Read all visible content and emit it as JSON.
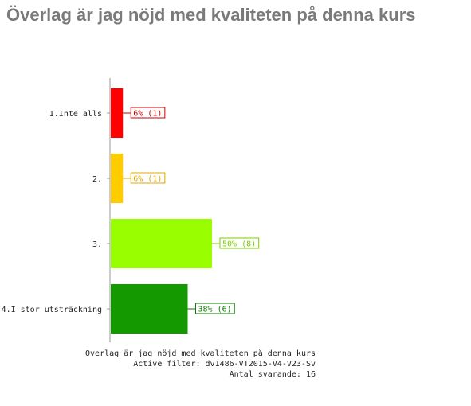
{
  "title": "Överlag är jag nöjd med kvaliteten på denna kurs",
  "chart_data": {
    "type": "bar",
    "orientation": "horizontal",
    "categories": [
      "1.Inte alls",
      "2.",
      "3.",
      "4.I stor utsträckning"
    ],
    "values": [
      6,
      6,
      50,
      38
    ],
    "counts": [
      1,
      1,
      8,
      6
    ],
    "value_labels": [
      "6% (1)",
      "6% (1)",
      "50% (8)",
      "38% (6)"
    ],
    "colors": [
      "#ff0000",
      "#ffcc00",
      "#99ff00",
      "#149a00"
    ],
    "label_colors": [
      "#cc0000",
      "#e0a800",
      "#7acc00",
      "#0e7a00"
    ],
    "xlim": [
      0,
      100
    ],
    "grid": false,
    "legend": "none"
  },
  "footer": {
    "line1": "Överlag är jag nöjd med kvaliteten på denna kurs",
    "line2": "Active filter: dv1486-VT2015-V4-V23-Sv",
    "line3": "Antal svarande: 16"
  }
}
